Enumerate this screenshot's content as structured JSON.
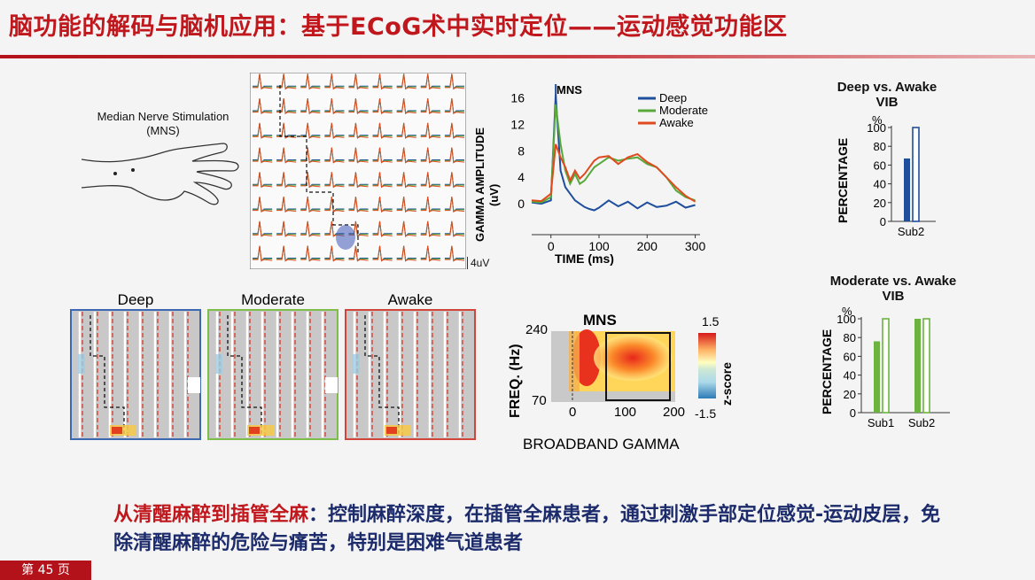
{
  "slide": {
    "title": "脑功能的解码与脑机应用：基于ECoG术中实时定位——运动感觉功能区",
    "page_number": "第 45 页"
  },
  "stimulation": {
    "label_line1": "Median Nerve Stimulation",
    "label_line2": "(MNS)"
  },
  "ecog_grid": {
    "scale_label": "4uV"
  },
  "gamma_chart": {
    "type": "line",
    "annotation": "MNS",
    "ylabel_line1": "GAMMA AMPLITUDE",
    "ylabel_line2": "(uV)",
    "xlabel": "TIME (ms)",
    "yticks": [
      "0",
      "4",
      "8",
      "12",
      "16"
    ],
    "xticks": [
      "0",
      "100",
      "200",
      "300"
    ],
    "xlim": [
      -40,
      310
    ],
    "ylim": [
      -2,
      17
    ],
    "series": [
      {
        "name": "Deep",
        "color": "#1f4e9c",
        "x": [
          -40,
          -20,
          0,
          10,
          20,
          30,
          40,
          50,
          60,
          70,
          80,
          90,
          100,
          120,
          140,
          160,
          180,
          200,
          220,
          240,
          260,
          280,
          300
        ],
        "y": [
          0.2,
          0,
          0.5,
          16.5,
          5,
          2.5,
          1.5,
          0.5,
          0,
          -0.5,
          -0.8,
          -1,
          -0.6,
          0.5,
          -0.4,
          0.3,
          -0.7,
          0.2,
          -0.5,
          -0.3,
          0.3,
          -0.6,
          -0.2
        ]
      },
      {
        "name": "Moderate",
        "color": "#58a83a",
        "x": [
          -40,
          -20,
          0,
          10,
          20,
          30,
          40,
          50,
          60,
          70,
          80,
          90,
          100,
          120,
          140,
          160,
          180,
          200,
          220,
          240,
          260,
          280,
          300
        ],
        "y": [
          0.3,
          0.2,
          1,
          15,
          9,
          5,
          3,
          4.5,
          3,
          3.5,
          4.5,
          5.5,
          6,
          7,
          6.5,
          6.8,
          7,
          6,
          5.5,
          4,
          2,
          1,
          0.5
        ]
      },
      {
        "name": "Awake",
        "color": "#e04a1f",
        "x": [
          -40,
          -20,
          0,
          10,
          20,
          30,
          40,
          50,
          60,
          70,
          80,
          90,
          100,
          120,
          140,
          160,
          180,
          200,
          220,
          240,
          260,
          280,
          300
        ],
        "y": [
          0.5,
          0.4,
          1.5,
          9,
          7,
          5.5,
          3.5,
          5,
          3.8,
          4.5,
          5.5,
          6.5,
          7,
          7.2,
          6,
          7,
          7.5,
          6.3,
          5.5,
          4,
          2.5,
          1.2,
          0.3
        ]
      }
    ]
  },
  "heatmaps": {
    "panels": [
      {
        "label": "Deep",
        "color": "#3c69b2"
      },
      {
        "label": "Moderate",
        "color": "#7fbd4a"
      },
      {
        "label": "Awake",
        "color": "#d2453a"
      }
    ]
  },
  "spectrogram": {
    "title": "MNS",
    "ylabel": "FREQ. (Hz)",
    "yticks": [
      "240",
      "70"
    ],
    "xticks": [
      "0",
      "100",
      "200"
    ],
    "colorbar_label": "z-score",
    "colorbar_max": "1.5",
    "colorbar_min": "-1.5",
    "caption": "BROADBAND GAMMA"
  },
  "chart_data": [
    {
      "type": "line",
      "title": "",
      "xlabel": "TIME (ms)",
      "ylabel": "GAMMA AMPLITUDE (uV)",
      "xlim": [
        -40,
        310
      ],
      "ylim": [
        -2,
        17
      ]
    },
    {
      "type": "bar",
      "title": "Deep vs. Awake VIB",
      "ylabel": "PERCENTAGE",
      "unit": "%",
      "categories": [
        "Sub2"
      ],
      "ylim": [
        0,
        100
      ],
      "yticks": [
        "0",
        "20",
        "40",
        "60",
        "80",
        "100"
      ],
      "series": [
        {
          "color": "#1f4e9c",
          "style": "filled",
          "values": [
            67
          ]
        },
        {
          "color": "#1f4e9c",
          "style": "hollow",
          "values": [
            100
          ]
        }
      ]
    },
    {
      "type": "bar",
      "title": "Moderate vs. Awake VIB",
      "ylabel": "PERCENTAGE",
      "unit": "%",
      "categories": [
        "Sub1",
        "Sub2"
      ],
      "ylim": [
        0,
        100
      ],
      "yticks": [
        "0",
        "20",
        "40",
        "60",
        "80",
        "100"
      ],
      "series": [
        {
          "color": "#6cb33f",
          "style": "filled",
          "values": [
            76,
            100
          ]
        },
        {
          "color": "#6cb33f",
          "style": "hollow",
          "values": [
            100,
            100
          ]
        }
      ]
    }
  ],
  "bar_charts": {
    "deep": {
      "title_line1": "Deep vs. Awake",
      "title_line2": "VIB"
    },
    "moderate": {
      "title_line1": "Moderate vs. Awake",
      "title_line2": "VIB"
    }
  },
  "summary": {
    "highlight": "从清醒麻醉到插管全麻",
    "body": "：控制麻醉深度，在插管全麻患者，通过刺激手部定位感觉-运动皮层，免除清醒麻醉的危险与痛苦，特别是困难气道患者"
  }
}
